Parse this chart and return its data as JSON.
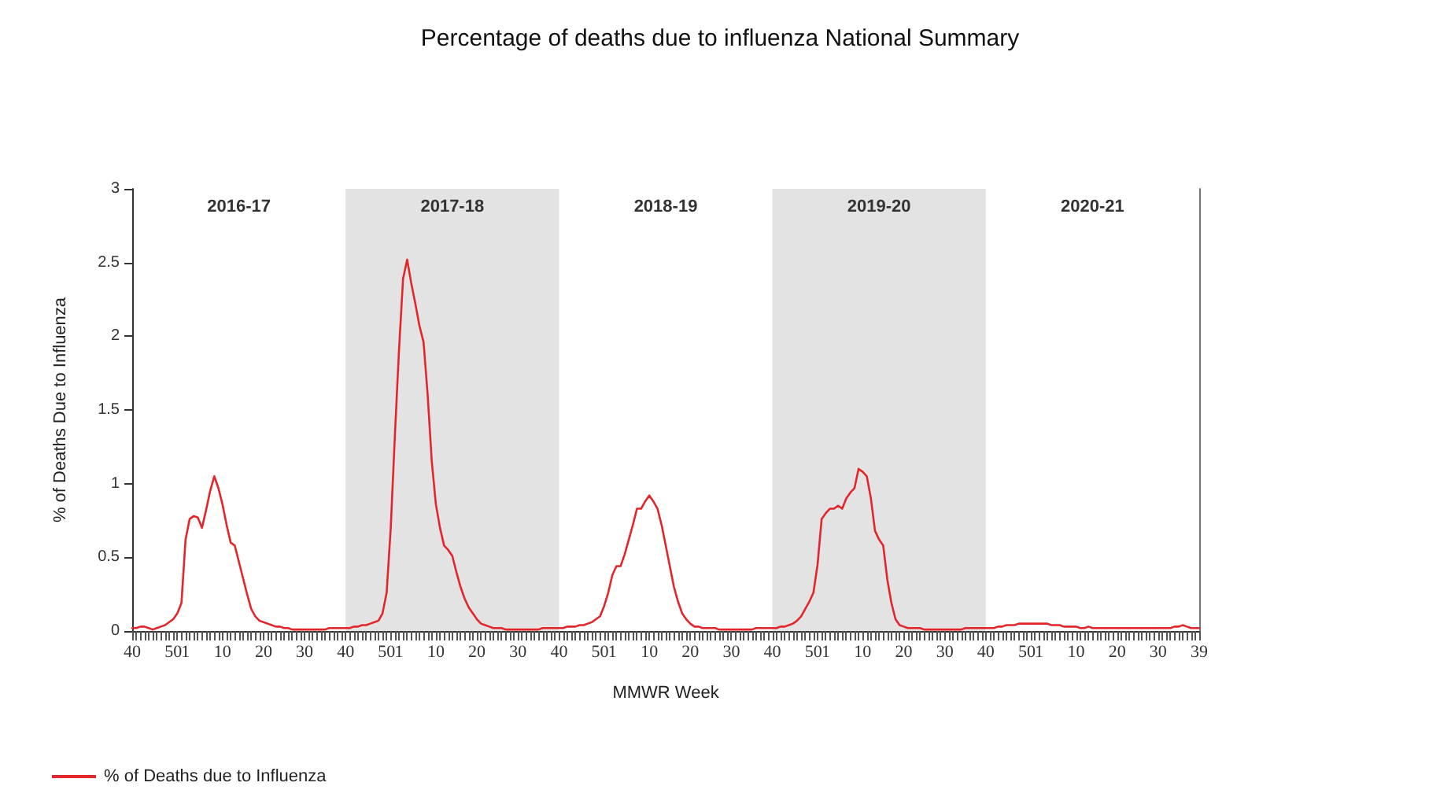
{
  "chart_data": {
    "type": "line",
    "title": "Percentage of deaths due to influenza National Summary",
    "xlabel": "MMWR Week",
    "ylabel": "% of Deaths Due to Influenza",
    "annotations": [
      "2016-17",
      "2017-18",
      "2018-19",
      "2019-20",
      "2020-21"
    ],
    "categories": [
      "40",
      null,
      null,
      null,
      null,
      null,
      null,
      null,
      null,
      null,
      "50",
      null,
      null,
      "1",
      null,
      null,
      null,
      null,
      null,
      null,
      null,
      null,
      "10",
      null,
      null,
      null,
      null,
      null,
      null,
      null,
      null,
      null,
      "20",
      null,
      null,
      null,
      null,
      null,
      null,
      null,
      null,
      null,
      "30",
      null,
      null,
      null,
      null,
      null,
      null,
      null,
      null,
      null,
      "40",
      null,
      null,
      null,
      null,
      null,
      null,
      null,
      null,
      null,
      "50",
      null,
      null,
      "1",
      null,
      null,
      null,
      null,
      null,
      null,
      null,
      null,
      "10",
      null,
      null,
      null,
      null,
      null,
      null,
      null,
      null,
      null,
      "20",
      null,
      null,
      null,
      null,
      null,
      null,
      null,
      null,
      null,
      "30",
      null,
      null,
      null,
      null,
      null,
      null,
      null,
      null,
      null,
      "40",
      null,
      null,
      null,
      null,
      null,
      null,
      null,
      null,
      null,
      "50",
      null,
      null,
      "1",
      null,
      null,
      null,
      null,
      null,
      null,
      null,
      null,
      "10",
      null,
      null,
      null,
      null,
      null,
      null,
      null,
      null,
      null,
      "20",
      null,
      null,
      null,
      null,
      null,
      null,
      null,
      null,
      null,
      "30",
      null,
      null,
      null,
      null,
      null,
      null,
      null,
      null,
      null,
      "40",
      null,
      null,
      null,
      null,
      null,
      null,
      null,
      null,
      null,
      "50",
      null,
      null,
      "1",
      null,
      null,
      null,
      null,
      null,
      null,
      null,
      null,
      "10",
      null,
      null,
      null,
      null,
      null,
      null,
      null,
      null,
      null,
      "20",
      null,
      null,
      null,
      null,
      null,
      null,
      null,
      null,
      null,
      "30",
      null,
      null,
      null,
      null,
      null,
      null,
      null,
      null,
      null,
      "40",
      null,
      null,
      null,
      null,
      null,
      null,
      null,
      null,
      null,
      "50",
      null,
      null,
      "1",
      null,
      null,
      null,
      null,
      null,
      null,
      null,
      null,
      "10",
      null,
      null,
      null,
      null,
      null,
      null,
      null,
      null,
      null,
      "20",
      null,
      null,
      null,
      null,
      null,
      null,
      null,
      null,
      null,
      "30",
      null,
      null,
      null,
      null,
      null,
      null,
      null,
      null,
      null,
      "39"
    ],
    "ylim": [
      0,
      3
    ],
    "yticks": [
      0,
      0.5,
      1,
      1.5,
      2,
      2.5,
      3
    ],
    "legend": "bottom left",
    "grid": false,
    "marker": "none",
    "line_style": "solid",
    "series": [
      {
        "name": "% of Deaths due to Influenza",
        "color": "#e3262b",
        "values": [
          0.02,
          0.02,
          0.03,
          0.03,
          0.02,
          0.01,
          0.02,
          0.03,
          0.04,
          0.06,
          0.08,
          0.12,
          0.19,
          0.62,
          0.76,
          0.78,
          0.77,
          0.7,
          0.82,
          0.95,
          1.05,
          0.97,
          0.86,
          0.72,
          0.6,
          0.58,
          0.47,
          0.36,
          0.25,
          0.15,
          0.1,
          0.07,
          0.06,
          0.05,
          0.04,
          0.03,
          0.03,
          0.02,
          0.02,
          0.01,
          0.01,
          0.01,
          0.01,
          0.01,
          0.01,
          0.01,
          0.01,
          0.01,
          0.02,
          0.02,
          0.02,
          0.02,
          0.02,
          0.02,
          0.03,
          0.03,
          0.04,
          0.04,
          0.05,
          0.06,
          0.07,
          0.12,
          0.26,
          0.7,
          1.32,
          1.9,
          2.39,
          2.52,
          2.36,
          2.22,
          2.07,
          1.96,
          1.6,
          1.15,
          0.86,
          0.7,
          0.58,
          0.55,
          0.51,
          0.4,
          0.3,
          0.22,
          0.16,
          0.12,
          0.08,
          0.05,
          0.04,
          0.03,
          0.02,
          0.02,
          0.02,
          0.01,
          0.01,
          0.01,
          0.01,
          0.01,
          0.01,
          0.01,
          0.01,
          0.01,
          0.02,
          0.02,
          0.02,
          0.02,
          0.02,
          0.02,
          0.03,
          0.03,
          0.03,
          0.04,
          0.04,
          0.05,
          0.06,
          0.08,
          0.1,
          0.17,
          0.26,
          0.38,
          0.44,
          0.44,
          0.52,
          0.62,
          0.72,
          0.83,
          0.83,
          0.88,
          0.92,
          0.88,
          0.83,
          0.72,
          0.58,
          0.44,
          0.3,
          0.2,
          0.12,
          0.08,
          0.05,
          0.03,
          0.03,
          0.02,
          0.02,
          0.02,
          0.02,
          0.01,
          0.01,
          0.01,
          0.01,
          0.01,
          0.01,
          0.01,
          0.01,
          0.01,
          0.02,
          0.02,
          0.02,
          0.02,
          0.02,
          0.02,
          0.03,
          0.03,
          0.04,
          0.05,
          0.07,
          0.1,
          0.15,
          0.2,
          0.26,
          0.45,
          0.76,
          0.8,
          0.83,
          0.83,
          0.85,
          0.83,
          0.9,
          0.94,
          0.97,
          1.1,
          1.08,
          1.05,
          0.9,
          0.68,
          0.62,
          0.58,
          0.35,
          0.19,
          0.08,
          0.04,
          0.03,
          0.02,
          0.02,
          0.02,
          0.02,
          0.01,
          0.01,
          0.01,
          0.01,
          0.01,
          0.01,
          0.01,
          0.01,
          0.01,
          0.01,
          0.02,
          0.02,
          0.02,
          0.02,
          0.02,
          0.02,
          0.02,
          0.02,
          0.03,
          0.03,
          0.04,
          0.04,
          0.04,
          0.05,
          0.05,
          0.05,
          0.05,
          0.05,
          0.05,
          0.05,
          0.05,
          0.04,
          0.04,
          0.04,
          0.03,
          0.03,
          0.03,
          0.03,
          0.02,
          0.02,
          0.03,
          0.02,
          0.02,
          0.02,
          0.02,
          0.02,
          0.02,
          0.02,
          0.02,
          0.02,
          0.02,
          0.02,
          0.02,
          0.02,
          0.02,
          0.02,
          0.02,
          0.02,
          0.02,
          0.02,
          0.02,
          0.03,
          0.03,
          0.04,
          0.03,
          0.02,
          0.02,
          0.02
        ]
      }
    ]
  }
}
